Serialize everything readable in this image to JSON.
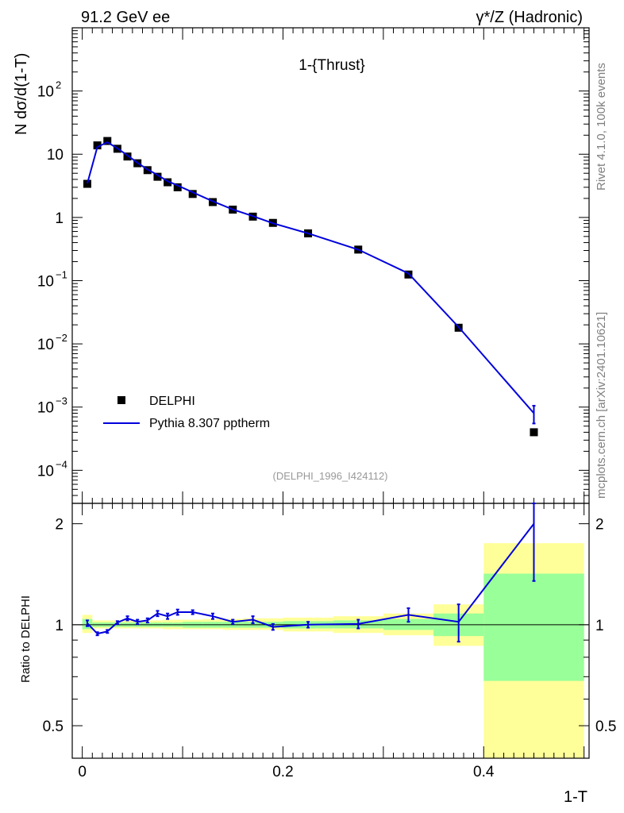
{
  "header": {
    "energy_label": "91.2 GeV ee",
    "process_label": "γ*/Z (Hadronic)"
  },
  "side_labels": {
    "rivet": "Rivet 4.1.0,  100k events",
    "source": "mcplots.cern.ch [arXiv:2401.10621]"
  },
  "chart_data": {
    "type": "line",
    "title": "1-{Thrust}",
    "xlabel": "1-T",
    "ylabel_main": "N  dσ/d(1-T)",
    "ylabel_ratio": "Ratio to DELPHI",
    "analysis_tag": "(DELPHI_1996_I424112)",
    "main_yscale": "log",
    "main_ylim": [
      3e-05,
      1000
    ],
    "ratio_ylim": [
      0.4,
      2.3
    ],
    "xlim": [
      -0.01,
      0.505
    ],
    "x_ticks": [
      "0",
      "0.2",
      "0.4"
    ],
    "main_y_ticks": [
      "10^-4",
      "10^-3",
      "10^-2",
      "10^-1",
      "1",
      "10",
      "10^2"
    ],
    "ratio_y_ticks": [
      "0.5",
      "1",
      "2"
    ],
    "legend": {
      "position": "bottom-left",
      "entries": [
        "DELPHI",
        "Pythia 8.307 pptherm"
      ]
    },
    "bins": [
      [
        0.0,
        0.01
      ],
      [
        0.01,
        0.02
      ],
      [
        0.02,
        0.03
      ],
      [
        0.03,
        0.04
      ],
      [
        0.04,
        0.05
      ],
      [
        0.05,
        0.06
      ],
      [
        0.06,
        0.07
      ],
      [
        0.07,
        0.08
      ],
      [
        0.08,
        0.09
      ],
      [
        0.09,
        0.1
      ],
      [
        0.1,
        0.12
      ],
      [
        0.12,
        0.14
      ],
      [
        0.14,
        0.16
      ],
      [
        0.16,
        0.18
      ],
      [
        0.18,
        0.2
      ],
      [
        0.2,
        0.25
      ],
      [
        0.25,
        0.3
      ],
      [
        0.3,
        0.35
      ],
      [
        0.35,
        0.4
      ],
      [
        0.4,
        0.5
      ]
    ],
    "series": [
      {
        "name": "DELPHI",
        "style": "markers",
        "x": [
          0.005,
          0.015,
          0.025,
          0.035,
          0.045,
          0.055,
          0.065,
          0.075,
          0.085,
          0.095,
          0.11,
          0.13,
          0.15,
          0.17,
          0.19,
          0.225,
          0.275,
          0.325,
          0.375,
          0.45
        ],
        "y": [
          3.4,
          13.8,
          16.2,
          12.2,
          9.2,
          7.2,
          5.6,
          4.4,
          3.6,
          3.0,
          2.35,
          1.75,
          1.33,
          1.03,
          0.82,
          0.56,
          0.31,
          0.125,
          0.018,
          0.0004
        ]
      },
      {
        "name": "Pythia 8.307 pptherm",
        "style": "line",
        "color": "#0000dd",
        "x": [
          0.005,
          0.015,
          0.025,
          0.035,
          0.045,
          0.055,
          0.065,
          0.075,
          0.085,
          0.095,
          0.11,
          0.13,
          0.15,
          0.17,
          0.19,
          0.225,
          0.275,
          0.325,
          0.375,
          0.45
        ],
        "y": [
          3.45,
          13.0,
          15.5,
          12.4,
          9.6,
          7.3,
          5.75,
          4.7,
          3.75,
          3.2,
          2.5,
          1.8,
          1.34,
          1.05,
          0.81,
          0.56,
          0.31,
          0.13,
          0.0184,
          0.0008
        ],
        "y_err_last": [
          0.00055,
          0.00105
        ]
      }
    ],
    "ratio": {
      "name": "Pythia 8.307 pptherm / DELPHI",
      "values": [
        1.01,
        0.94,
        0.955,
        1.015,
        1.045,
        1.02,
        1.03,
        1.08,
        1.06,
        1.09,
        1.09,
        1.06,
        1.02,
        1.035,
        0.985,
        1.0,
        1.005,
        1.07,
        1.02,
        2.0
      ],
      "errors": [
        0.02,
        0.01,
        0.01,
        0.01,
        0.015,
        0.015,
        0.015,
        0.02,
        0.02,
        0.02,
        0.015,
        0.02,
        0.015,
        0.025,
        0.02,
        0.02,
        0.03,
        0.05,
        0.13,
        0.65
      ],
      "band_green": [
        [
          0.97,
          1.04
        ],
        [
          0.985,
          1.015
        ],
        [
          0.985,
          1.015
        ],
        [
          0.985,
          1.015
        ],
        [
          0.985,
          1.015
        ],
        [
          0.985,
          1.015
        ],
        [
          0.985,
          1.015
        ],
        [
          0.985,
          1.015
        ],
        [
          0.985,
          1.015
        ],
        [
          0.985,
          1.015
        ],
        [
          0.98,
          1.02
        ],
        [
          0.98,
          1.02
        ],
        [
          0.98,
          1.02
        ],
        [
          0.98,
          1.02
        ],
        [
          0.98,
          1.02
        ],
        [
          0.975,
          1.025
        ],
        [
          0.975,
          1.03
        ],
        [
          0.965,
          1.04
        ],
        [
          0.925,
          1.08
        ],
        [
          0.68,
          1.42
        ]
      ],
      "band_yellow": [
        [
          0.945,
          1.07
        ],
        [
          0.975,
          1.03
        ],
        [
          0.975,
          1.03
        ],
        [
          0.975,
          1.03
        ],
        [
          0.975,
          1.03
        ],
        [
          0.975,
          1.03
        ],
        [
          0.975,
          1.03
        ],
        [
          0.975,
          1.03
        ],
        [
          0.97,
          1.035
        ],
        [
          0.97,
          1.035
        ],
        [
          0.97,
          1.035
        ],
        [
          0.97,
          1.04
        ],
        [
          0.965,
          1.04
        ],
        [
          0.965,
          1.045
        ],
        [
          0.965,
          1.045
        ],
        [
          0.955,
          1.05
        ],
        [
          0.945,
          1.06
        ],
        [
          0.93,
          1.08
        ],
        [
          0.865,
          1.15
        ],
        [
          0.4,
          1.75
        ]
      ]
    },
    "colors": {
      "mc": "#0000dd",
      "data": "#000000",
      "band_green": "#99ff99",
      "band_yellow": "#ffff99",
      "side_text": "#808080",
      "analysis_tag": "#999999"
    }
  }
}
